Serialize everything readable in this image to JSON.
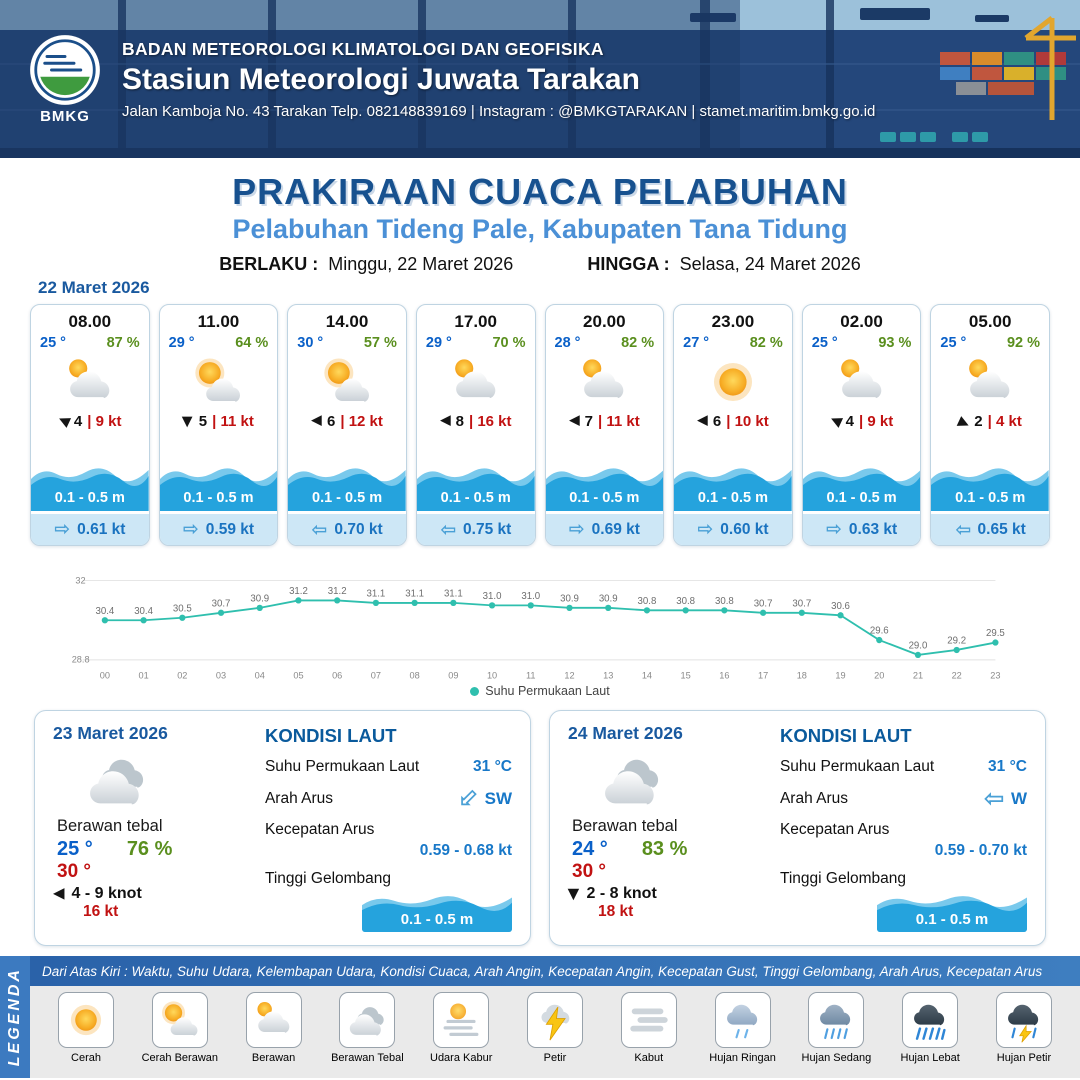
{
  "header": {
    "org": "BADAN METEOROLOGI KLIMATOLOGI DAN GEOFISIKA",
    "station": "Stasiun Meteorologi Juwata Tarakan",
    "address": "Jalan Kamboja No. 43 Tarakan  Telp. 082148839169 | Instagram : @BMKGTARAKAN | stamet.maritim.bmkg.go.id",
    "logo_text": "BMKG"
  },
  "title": {
    "main": "PRAKIRAAN CUACA PELABUHAN",
    "subtitle": "Pelabuhan Tideng Pale, Kabupaten Tana Tidung",
    "valid_from_label": "BERLAKU :",
    "valid_from": "Minggu, 22 Maret 2026",
    "valid_to_label": "HINGGA :",
    "valid_to": "Selasa, 24 Maret 2026"
  },
  "hourly_date": "22 Maret 2026",
  "glyphs": {
    "wind_arrow": "▶",
    "current_arrow": "⇨"
  },
  "hourly": [
    {
      "time": "08.00",
      "temp": "25 °",
      "humidity": "87 %",
      "icon": "berawan",
      "wind_speed": "4",
      "wind_gust": "| 9 kt",
      "wind_dir_deg": "205",
      "wave": "0.1 - 0.5 m",
      "current_speed": "0.61 kt",
      "current_dir_deg": "0"
    },
    {
      "time": "11.00",
      "temp": "29 °",
      "humidity": "64 %",
      "icon": "cerah-berawan",
      "wind_speed": "5",
      "wind_gust": "| 11 kt",
      "wind_dir_deg": "90",
      "wave": "0.1 - 0.5 m",
      "current_speed": "0.59 kt",
      "current_dir_deg": "0"
    },
    {
      "time": "14.00",
      "temp": "30 °",
      "humidity": "57 %",
      "icon": "cerah-berawan",
      "wind_speed": "6",
      "wind_gust": "| 12 kt",
      "wind_dir_deg": "180",
      "wave": "0.1 - 0.5 m",
      "current_speed": "0.70 kt",
      "current_dir_deg": "180"
    },
    {
      "time": "17.00",
      "temp": "29 °",
      "humidity": "70 %",
      "icon": "berawan",
      "wind_speed": "8",
      "wind_gust": "| 16 kt",
      "wind_dir_deg": "180",
      "wave": "0.1 - 0.5 m",
      "current_speed": "0.75 kt",
      "current_dir_deg": "180"
    },
    {
      "time": "20.00",
      "temp": "28 °",
      "humidity": "82 %",
      "icon": "berawan",
      "wind_speed": "7",
      "wind_gust": "| 11 kt",
      "wind_dir_deg": "180",
      "wave": "0.1 - 0.5 m",
      "current_speed": "0.69 kt",
      "current_dir_deg": "0"
    },
    {
      "time": "23.00",
      "temp": "27 °",
      "humidity": "82 %",
      "icon": "cerah",
      "wind_speed": "6",
      "wind_gust": "| 10 kt",
      "wind_dir_deg": "180",
      "wave": "0.1 - 0.5 m",
      "current_speed": "0.60 kt",
      "current_dir_deg": "0"
    },
    {
      "time": "02.00",
      "temp": "25 °",
      "humidity": "93 %",
      "icon": "berawan",
      "wind_speed": "4",
      "wind_gust": "| 9 kt",
      "wind_dir_deg": "205",
      "wave": "0.1 - 0.5 m",
      "current_speed": "0.63 kt",
      "current_dir_deg": "0"
    },
    {
      "time": "05.00",
      "temp": "25 °",
      "humidity": "92 %",
      "icon": "berawan",
      "wind_speed": "2",
      "wind_gust": "| 4 kt",
      "wind_dir_deg": "25",
      "wave": "0.1 - 0.5 m",
      "current_speed": "0.65 kt",
      "current_dir_deg": "180"
    }
  ],
  "chart_data": {
    "type": "line",
    "title": "",
    "series_name": "Suhu Permukaan Laut",
    "x": [
      "00",
      "01",
      "02",
      "03",
      "04",
      "05",
      "06",
      "07",
      "08",
      "09",
      "10",
      "11",
      "12",
      "13",
      "14",
      "15",
      "16",
      "17",
      "18",
      "19",
      "20",
      "21",
      "22",
      "23"
    ],
    "values": [
      30.4,
      30.4,
      30.5,
      30.7,
      30.9,
      31.2,
      31.2,
      31.1,
      31.1,
      31.1,
      31.0,
      31.0,
      30.9,
      30.9,
      30.8,
      30.8,
      30.8,
      30.7,
      30.7,
      30.6,
      29.6,
      29.0,
      29.2,
      29.5
    ],
    "ylim": [
      28.8,
      32
    ],
    "y_ticks": [
      "32",
      "28.8"
    ],
    "line_color": "#2fbfae",
    "legend_position": "bottom",
    "grid": true
  },
  "daily": [
    {
      "date": "23 Maret 2026",
      "icon": "berawan-tebal",
      "condition": "Berawan tebal",
      "temp_min": "25 °",
      "humidity": "76 %",
      "temp_max": "30 °",
      "wind_dir_deg": "180",
      "wind_range": "4 - 9 knot",
      "gust": "16 kt",
      "sea": {
        "heading": "KONDISI LAUT",
        "sst_label": "Suhu Permukaan Laut",
        "sst": "31 °C",
        "current_dir_label": "Arah Arus",
        "current_dir": "SW",
        "current_dir_deg": "135",
        "current_speed_label": "Kecepatan Arus",
        "current_speed": "0.59 - 0.68 kt",
        "wave_label": "Tinggi Gelombang",
        "wave": "0.1 - 0.5 m"
      }
    },
    {
      "date": "24 Maret 2026",
      "icon": "berawan-tebal",
      "condition": "Berawan tebal",
      "temp_min": "24 °",
      "humidity": "83 %",
      "temp_max": "30 °",
      "wind_dir_deg": "90",
      "wind_range": "2 - 8 knot",
      "gust": "18 kt",
      "sea": {
        "heading": "KONDISI LAUT",
        "sst_label": "Suhu Permukaan Laut",
        "sst": "31 °C",
        "current_dir_label": "Arah Arus",
        "current_dir": "W",
        "current_dir_deg": "180",
        "current_speed_label": "Kecepatan Arus",
        "current_speed": "0.59 - 0.70 kt",
        "wave_label": "Tinggi Gelombang",
        "wave": "0.1 - 0.5 m"
      }
    }
  ],
  "legend": {
    "sidebar": "LEGENDA",
    "note": "Dari Atas Kiri : Waktu, Suhu Udara, Kelembapan Udara, Kondisi Cuaca, Arah Angin, Kecepatan Angin, Kecepatan Gust, Tinggi Gelombang, Arah Arus, Kecepatan Arus",
    "items": [
      {
        "label": "Cerah",
        "icon": "cerah"
      },
      {
        "label": "Cerah Berawan",
        "icon": "cerah-berawan"
      },
      {
        "label": "Berawan",
        "icon": "berawan"
      },
      {
        "label": "Berawan Tebal",
        "icon": "berawan-tebal"
      },
      {
        "label": "Udara Kabur",
        "icon": "udara-kabur"
      },
      {
        "label": "Petir",
        "icon": "petir"
      },
      {
        "label": "Kabut",
        "icon": "kabut"
      },
      {
        "label": "Hujan Ringan",
        "icon": "hujan-ringan"
      },
      {
        "label": "Hujan Sedang",
        "icon": "hujan-sedang"
      },
      {
        "label": "Hujan Lebat",
        "icon": "hujan-lebat"
      },
      {
        "label": "Hujan Petir",
        "icon": "hujan-petir"
      }
    ]
  }
}
